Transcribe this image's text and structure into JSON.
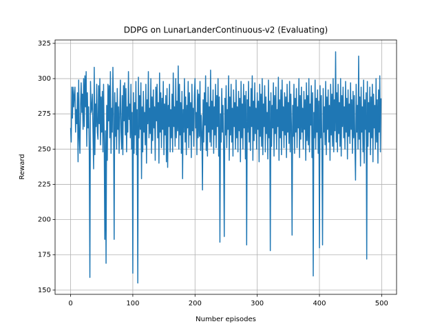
{
  "chart_data": {
    "type": "line",
    "title": "DDPG on LunarLanderContinuous-v2 (Evaluating)",
    "x_label": "Number episodes",
    "y_label": "Reward",
    "xlim": [
      -24.95,
      523.95
    ],
    "xticks": [
      0,
      100,
      200,
      300,
      400,
      500
    ],
    "ylim": [
      147,
      327.4
    ],
    "yticks": [
      150,
      175,
      200,
      225,
      250,
      275,
      300,
      325
    ],
    "grid": true,
    "series": [
      {
        "color": "#1f77b4",
        "values": [
          265,
          255,
          294,
          272,
          294,
          280,
          288,
          294,
          262,
          278,
          268,
          290,
          241,
          299,
          258,
          247,
          281,
          297,
          276,
          289,
          264,
          300,
          266,
          302,
          280,
          305,
          252,
          290,
          265,
          280,
          248,
          159,
          298,
          276,
          279,
          289,
          262,
          236,
          308,
          246,
          282,
          266,
          296,
          262,
          257,
          295,
          268,
          300,
          253,
          287,
          262,
          291,
          248,
          296,
          257,
          186,
          263,
          169,
          281,
          242,
          296,
          270,
          295,
          258,
          305,
          247,
          279,
          262,
          308,
          272,
          186,
          290,
          259,
          283,
          250,
          293,
          264,
          280,
          247,
          276,
          299,
          262,
          250,
          288,
          246,
          295,
          270,
          297,
          260,
          293,
          248,
          280,
          262,
          305,
          271,
          282,
          258,
          296,
          250,
          276,
          162,
          290,
          247,
          283,
          260,
          298,
          246,
          278,
          155,
          301,
          258,
          288,
          264,
          297,
          229,
          280,
          248,
          291,
          262,
          276,
          253,
          296,
          240,
          285,
          268,
          305,
          258,
          279,
          261,
          300,
          247,
          287,
          256,
          292,
          265,
          280,
          242,
          294,
          270,
          296,
          258,
          283,
          240,
          304,
          262,
          290,
          251,
          286,
          264,
          298,
          246,
          282,
          260,
          288,
          241,
          293,
          237,
          281,
          266,
          296,
          248,
          278,
          258,
          289,
          248,
          304,
          266,
          280,
          252,
          300,
          258,
          284,
          263,
          309,
          250,
          296,
          260,
          283,
          247,
          291,
          229,
          278,
          262,
          300,
          255,
          287,
          246,
          281,
          265,
          298,
          251,
          290,
          260,
          283,
          244,
          296,
          263,
          279,
          252,
          288,
          300,
          265,
          276,
          246,
          292,
          258,
          289,
          259,
          298,
          249,
          274,
          262,
          221,
          285,
          255,
          290,
          267,
          302,
          249,
          283,
          245,
          294,
          262,
          280,
          255,
          306,
          252,
          284,
          264,
          292,
          247,
          280,
          260,
          296,
          251,
          288,
          266,
          300,
          245,
          287,
          184,
          275,
          255,
          293,
          262,
          281,
          248,
          188,
          286,
          260,
          295,
          251,
          278,
          264,
          302,
          242,
          287,
          260,
          296,
          255,
          279,
          245,
          292,
          266,
          283,
          250,
          299,
          258,
          280,
          248,
          291,
          263,
          286,
          241,
          298,
          258,
          282,
          250,
          296,
          265,
          288,
          243,
          291,
          182,
          285,
          262,
          298,
          255,
          280,
          249,
          293,
          266,
          302,
          242,
          284,
          256,
          297,
          261,
          279,
          250,
          290,
          264,
          284,
          241,
          296,
          259,
          289,
          252,
          300,
          246,
          282,
          266,
          295,
          248,
          287,
          261,
          276,
          243,
          299,
          258,
          284,
          178,
          290,
          252,
          281,
          265,
          297,
          245,
          288,
          261,
          294,
          250,
          278,
          266,
          301,
          242,
          285,
          258,
          292,
          246,
          299,
          263,
          280,
          251,
          290,
          260,
          287,
          244,
          296,
          262,
          283,
          254,
          298,
          248,
          289,
          266,
          189,
          281,
          259,
          296,
          247,
          286,
          262,
          293,
          251,
          280,
          265,
          300,
          244,
          288,
          257,
          294,
          262,
          279,
          250,
          291,
          264,
          285,
          242,
          297,
          256,
          288,
          253,
          300,
          248,
          282,
          267,
          295,
          244,
          290,
          160,
          276,
          258,
          299,
          250,
          286,
          262,
          292,
          247,
          284,
          180,
          295,
          258,
          288,
          249,
          182,
          293,
          262,
          280,
          253,
          298,
          246,
          287,
          264,
          292,
          255,
          281,
          242,
          296,
          260,
          289,
          252,
          300,
          248,
          285,
          263,
          319,
          255,
          290,
          248,
          296,
          261,
          283,
          252,
          300,
          245,
          288,
          266,
          294,
          258,
          280,
          250,
          298,
          262,
          286,
          243,
          292,
          259,
          282,
          254,
          297,
          264,
          285,
          247,
          291,
          258,
          288,
          253,
          228,
          296,
          262,
          281,
          250,
          316,
          257,
          287,
          238,
          294,
          262,
          280,
          248,
          299,
          240,
          285,
          264,
          290,
          172,
          298,
          252,
          283,
          262,
          294,
          246,
          287,
          258,
          296,
          241,
          289,
          265,
          281,
          250,
          300,
          255,
          285,
          240,
          292,
          262,
          302,
          248,
          286
        ]
      }
    ]
  }
}
